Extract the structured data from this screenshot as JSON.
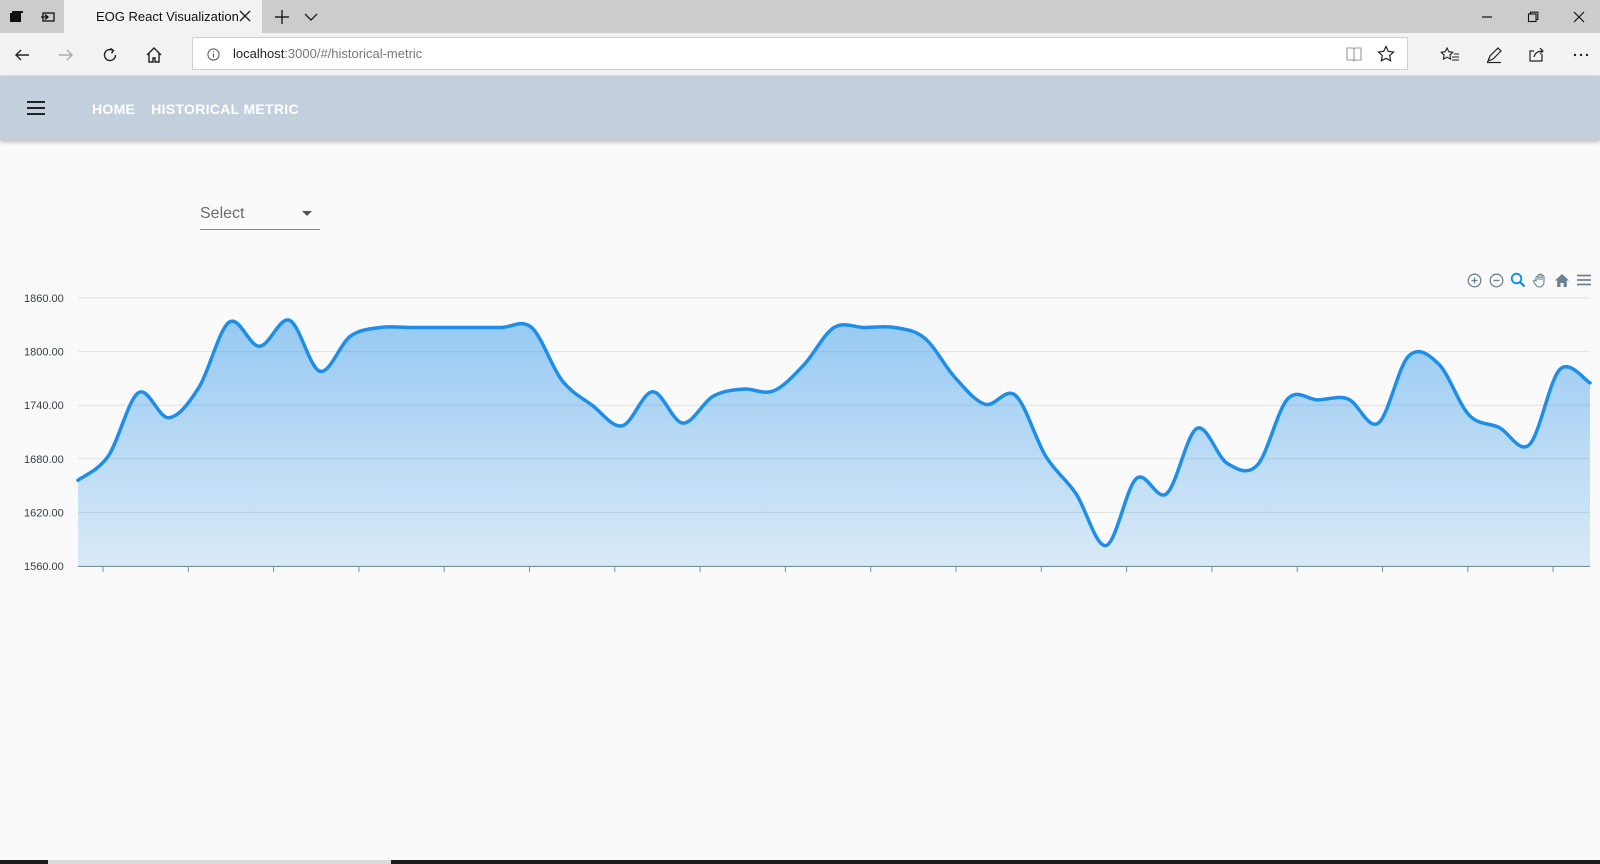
{
  "browser": {
    "tab_title": "EOG React Visualization",
    "url_host": "localhost",
    "url_rest": ":3000/#/historical-metric",
    "icons": [
      "tab-manager-icon",
      "set-aside-tabs-icon",
      "close-icon",
      "new-tab-icon",
      "tab-menu-icon",
      "minimize-icon",
      "maximize-icon",
      "close-window-icon",
      "back-icon",
      "forward-icon",
      "refresh-icon",
      "home-icon",
      "info-icon",
      "reading-view-icon",
      "favorite-star-icon",
      "favorites-icon",
      "pen-icon",
      "share-icon",
      "more-icon"
    ]
  },
  "appbar": {
    "background": "#c3cfdd",
    "nav": [
      "HOME",
      "HISTORICAL METRIC"
    ]
  },
  "select": {
    "label": "Select"
  },
  "chart_toolbar": [
    "zoom-in-icon",
    "zoom-out-icon",
    "zoom-select-icon",
    "pan-icon",
    "reset-home-icon",
    "menu-icon"
  ],
  "chart_data": {
    "type": "area",
    "color": "#1e8ee9",
    "ylim": [
      1560,
      1860
    ],
    "y_ticks": [
      "1860.00",
      "1800.00",
      "1740.00",
      "1680.00",
      "1620.00",
      "1560.00"
    ],
    "grid": true,
    "values": [
      1656,
      1683,
      1754,
      1726,
      1760,
      1833,
      1806,
      1835,
      1778,
      1817,
      1827,
      1827,
      1827,
      1827,
      1827,
      1827,
      1768,
      1740,
      1717,
      1755,
      1720,
      1750,
      1758,
      1756,
      1785,
      1827,
      1827,
      1827,
      1815,
      1771,
      1741,
      1751,
      1683,
      1641,
      1583,
      1658,
      1641,
      1714,
      1675,
      1673,
      1747,
      1746,
      1747,
      1720,
      1795,
      1786,
      1729,
      1715,
      1696,
      1780,
      1765
    ]
  }
}
